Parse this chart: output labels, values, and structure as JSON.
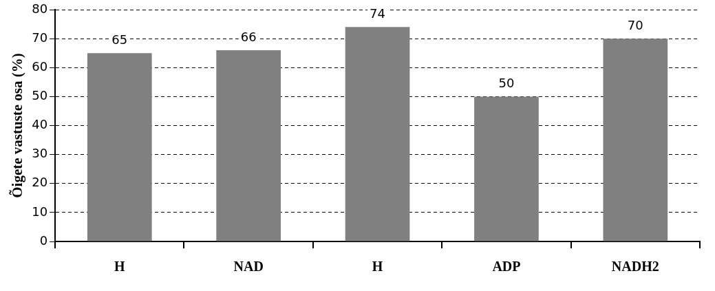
{
  "chart_data": {
    "type": "bar",
    "ylabel": "Õigete vastuste osa (%)",
    "categories": [
      "H",
      "NAD",
      "H",
      "ADP",
      "NADH2"
    ],
    "values": [
      65,
      66,
      74,
      50,
      70
    ],
    "color": "#808080",
    "ylim": [
      0,
      80
    ],
    "yticks": [
      0,
      10,
      20,
      30,
      40,
      50,
      60,
      70,
      80
    ],
    "grid": "y",
    "data_labels": true,
    "legend": false
  }
}
